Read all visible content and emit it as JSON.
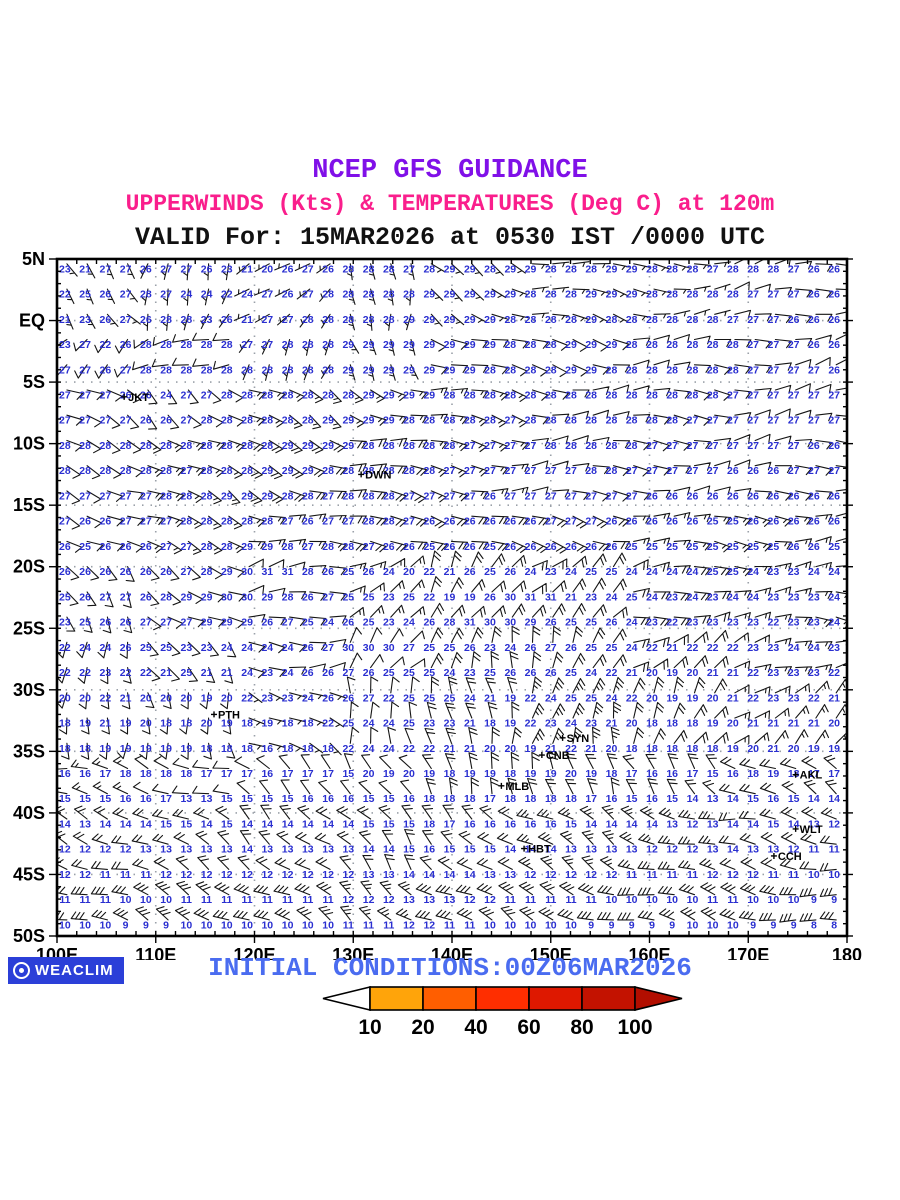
{
  "header": {
    "line1": "NCEP GFS GUIDANCE",
    "line2": "UPPERWINDS (Kts) & TEMPERATURES (Deg C) at 120m",
    "line3": "VALID For: 15MAR2026 at 0530 IST /0000 UTC"
  },
  "footer": {
    "initial_conditions": "INITIAL CONDITIONS:00Z06MAR2026",
    "logo_text": "WEACLIM"
  },
  "colors": {
    "title_purple": "#8010E8",
    "title_pink": "#FA1E8C",
    "footer_blue": "#4A6CF0",
    "logo_blue": "#2B3FD8",
    "shade_10_20": "#FFA41E",
    "shade_20_40": "#FA750F",
    "shade_40_60": "#F9430C",
    "coastline_blue": "#2344DD",
    "temperature_blue": "#2A2FD0",
    "barb_black": "#151515"
  },
  "colorbar": {
    "tick_labels": [
      "10",
      "20",
      "40",
      "60",
      "80",
      "100"
    ],
    "segment_colors": [
      "#FFA40A",
      "#FF5E00",
      "#FF2E00",
      "#DE1800",
      "#C31200"
    ],
    "left_arrow_color": "#FFFFFF",
    "right_arrow_color": "#B20E00"
  },
  "map": {
    "lon_tick_labels": [
      "100E",
      "110E",
      "120E",
      "130E",
      "140E",
      "150E",
      "160E",
      "170E",
      "180"
    ],
    "lon_tick_values": [
      100,
      110,
      120,
      130,
      140,
      150,
      160,
      170,
      180
    ],
    "lat_tick_labels": [
      "5N",
      "EQ",
      "5S",
      "10S",
      "15S",
      "20S",
      "25S",
      "30S",
      "35S",
      "40S",
      "45S",
      "50S"
    ],
    "lat_tick_values": [
      5,
      0,
      -5,
      -10,
      -15,
      -20,
      -25,
      -30,
      -35,
      -40,
      -45,
      -50
    ],
    "grid_lons": [
      110,
      120,
      130,
      140,
      150,
      160,
      170
    ],
    "grid_lats": [
      0,
      -5,
      -10,
      -15,
      -20,
      -25,
      -30,
      -35,
      -40,
      -45
    ],
    "cities": [
      {
        "code": "JKT",
        "lon": 106.8,
        "lat": -6.2
      },
      {
        "code": "DWN",
        "lon": 130.8,
        "lat": -12.5
      },
      {
        "code": "PTH",
        "lon": 115.9,
        "lat": -32.0
      },
      {
        "code": "SYN",
        "lon": 151.2,
        "lat": -33.9
      },
      {
        "code": "CNB",
        "lon": 149.1,
        "lat": -35.3
      },
      {
        "code": "MLB",
        "lon": 145.0,
        "lat": -37.8
      },
      {
        "code": "HBT",
        "lon": 147.3,
        "lat": -42.9
      },
      {
        "code": "AKL",
        "lon": 174.8,
        "lat": -36.9
      },
      {
        "code": "WLT",
        "lon": 174.8,
        "lat": -41.3
      },
      {
        "code": "CCH",
        "lon": 172.6,
        "lat": -43.5
      }
    ],
    "temps": {
      "lon_start": 100.8,
      "lon_step": 2.05,
      "lat_start": 4.2,
      "lat_step": -2.05,
      "rows": [
        "23 21 27 27 26 27 27 26 23 21 20 26 27 26 28 28 28 27 28 29 29 28 29 29 28 28 28 29 29 28 28 28 27 28 28 28 27 26 26",
        "22 25 26 27 28 27 24 24 22 24 27 26 27 28 28 28 28 28 29 29 29 29 29 28 28 28 29 29 29 28 28 28 28 28 27 27 27 26 26",
        "21 23 26 27 26 28 28 23 26 21 27 27 28 28 28 28 28 29 29 29 29 29 28 28 28 28 29 28 28 28 28 28 28 27 27 27 26 26 26",
        "23 27 22 26 28 28 28 28 28 27 27 28 28 28 29 29 29 29 29 29 29 29 28 28 28 29 29 29 28 28 28 28 28 28 27 27 27 26 26",
        "27 27 26 27 28 28 28 28 28 28 28 28 28 28 29 29 29 29 29 29 29 28 28 28 28 29 29 28 28 28 28 28 28 28 27 27 27 27 26",
        "27 27 27 26 26 24 27 27 28 28 28 28 28 28 28 29 29 29 29 28 28 28 28 28 28 28 28 28 28 28 28 28 28 27 27 27 27 27 27",
        "27 27 27 27 26 26 27 28 28 28 28 28 28 29 29 29 29 28 28 28 28 28 27 28 28 28 28 28 28 28 28 27 27 27 27 27 27 27 27",
        "28 28 28 28 28 28 28 28 28 28 28 29 29 29 29 28 28 28 28 28 27 27 27 27 28 28 28 28 28 27 27 27 27 27 27 27 27 26 26",
        "28 28 28 28 28 28 27 28 28 28 29 29 29 28 28 28 28 28 28 27 27 27 27 27 27 27 28 28 27 27 27 27 27 26 26 26 27 27 27",
        "27 27 27 27 27 28 28 28 29 29 29 28 28 27 28 28 28 27 27 27 27 26 27 27 27 27 27 27 27 26 26 26 26 26 26 26 26 26 26",
        "27 26 26 27 27 27 28 28 28 28 28 27 26 27 27 28 28 27 26 26 26 26 26 26 27 27 27 26 26 26 26 26 25 25 26 26 26 26 26",
        "26 25 26 26 26 27 27 28 28 29 29 28 27 28 28 27 26 26 25 26 26 25 26 26 26 26 26 26 25 25 25 25 25 25 25 25 26 26 25",
        "26 26 26 26 26 26 27 28 29 30 31 31 28 26 25 26 24 20 22 21 26 25 26 24 23 24 25 25 24 24 24 24 25 25 24 23 23 24 24",
        "25 26 27 27 26 28 29 29 30 30 29 28 26 27 25 25 23 25 22 19 19 26 30 31 31 21 23 24 25 24 23 24 23 24 24 23 23 23 24",
        "23 25 26 26 27 27 27 29 29 29 26 27 25 24 26 25 23 24 26 28 31 30 30 29 26 25 25 26 24 23 22 23 23 23 23 22 23 23 24",
        "22 24 24 26 25 25 23 23 24 24 24 24 26 27 30 30 30 27 25 25 26 23 24 26 27 26 25 25 24 22 21 22 22 22 23 23 24 24 23",
        "22 22 23 22 22 21 25 21 21 24 23 24 26 26 27 26 25 25 25 24 23 25 26 26 26 25 24 22 21 20 19 20 21 21 22 23 23 23 22",
        "20 20 22 21 20 20 20 19 20 22 23 23 24 26 26 27 22 25 25 25 24 21 19 22 24 25 25 24 22 20 19 19 20 21 22 23 23 22 21",
        "18 19 21 19 20 18 18 20 19 18 19 18 18 22 25 24 24 25 23 23 21 18 19 22 23 24 23 21 20 18 18 18 19 20 21 21 21 21 20",
        "18 18 19 19 19 19 19 18 18 18 16 18 18 18 22 24 24 22 22 21 21 20 20 19 21 22 21 20 18 18 18 18 18 19 20 21 20 19 19",
        "16 16 17 18 18 18 18 17 17 17 16 17 17 17 15 20 19 20 19 18 19 19 18 19 19 20 19 18 17 16 16 17 15 16 18 19 18 17 17",
        "15 15 15 16 16 17 13 13 15 15 15 15 16 16 16 15 15 16 18 18 18 17 18 18 18 18 17 16 15 16 15 14 13 14 15 16 15 14 14",
        "14 13 14 14 14 15 15 14 15 14 14 14 14 14 14 15 15 15 18 17 16 16 16 16 16 15 14 14 14 14 13 12 13 14 14 15 14 13 12",
        "12 12 12 12 13 13 13 13 13 14 13 13 13 13 13 14 14 15 16 15 15 15 14 14 14 13 13 13 13 12 12 12 13 14 13 13 12 11 11",
        "12 12 11 11 11 12 12 12 12 12 12 12 12 12 12 13 13 14 14 14 14 13 13 12 12 12 12 12 11 11 11 11 12 12 12 11 11 10 10",
        "11 11 11 10 10 10 11 11 11 11 11 11 11 11 12 12 12 13 13 13 12 12 11 11 11 11 11 10 10 10 10 10 11 11 10 10 10 9 9",
        "10 10 10 9 9 9 10 10 10 10 10 10 10 10 11 11 11 12 12 11 11 10 10 10 10 10 9 9 9 9 9 10 10 10 9 9 9 8 8"
      ]
    },
    "winds": {
      "lat_start": 2.5,
      "lat_step": -5,
      "lon_start": 102.5,
      "lon_step": 10,
      "rows": [
        [
          "140:5",
          "200:5",
          "230:7",
          "180:5",
          "120:5",
          "100:7",
          "90:7",
          "80:8"
        ],
        [
          "230:8",
          "250:8",
          "210:7",
          "150:6",
          "110:8",
          "100:8",
          "90:8",
          "80:8"
        ],
        [
          "120:10",
          "130:12",
          "120:15",
          "110:15",
          "100:15",
          "90:12",
          "90:10",
          "85:10"
        ],
        [
          "110:12",
          "120:15",
          "110:18",
          "100:18",
          "95:15",
          "90:12",
          "90:12",
          "85:12"
        ],
        [
          "120:10",
          "110:15",
          "100:15",
          "90:18",
          "110:20",
          "100:18",
          "95:15",
          "90:15"
        ],
        [
          "150:8",
          "120:12",
          "80:10",
          "60:15",
          "30:18",
          "50:20",
          "80:18",
          "90:15"
        ],
        [
          "180:10",
          "150:10",
          "90:8",
          "40:12",
          "10:18",
          "20:22",
          "60:18",
          "70:15"
        ],
        [
          "190:12",
          "170:10",
          "120:5",
          "350:10",
          "355:20",
          "10:25",
          "30:20",
          "50:15"
        ],
        [
          "280:15",
          "290:12",
          "310:10",
          "330:12",
          "340:18",
          "350:22",
          "320:20",
          "300:18"
        ],
        [
          "290:20",
          "300:22",
          "310:20",
          "320:18",
          "310:20",
          "300:25",
          "290:25",
          "280:22"
        ],
        [
          "290:28",
          "295:30",
          "300:28",
          "305:25",
          "300:28",
          "290:30",
          "285:32",
          "280:30"
        ]
      ]
    }
  }
}
